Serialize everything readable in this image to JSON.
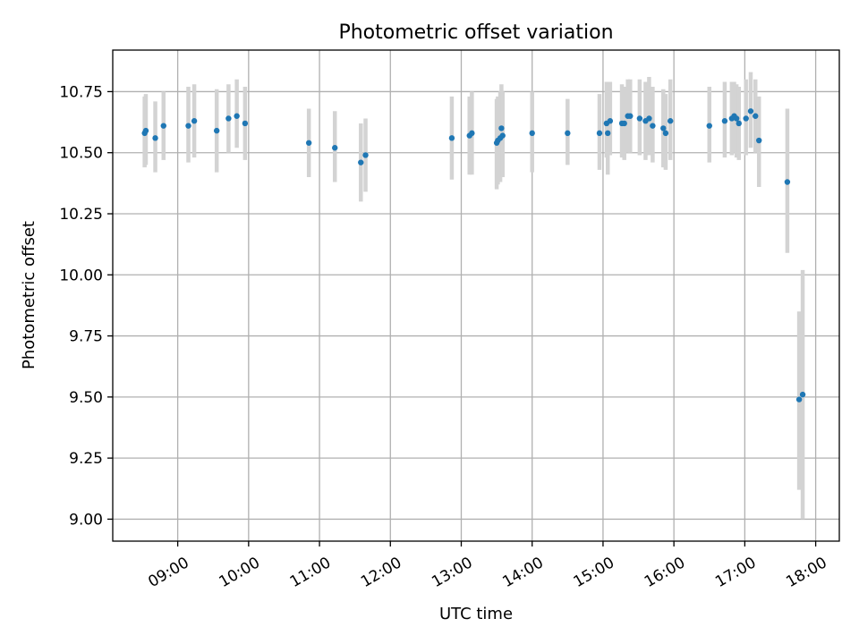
{
  "chart_data": {
    "type": "scatter",
    "title": "Photometric offset variation",
    "xlabel": "UTC time",
    "ylabel": "Photometric offset",
    "xlim": [
      "08:05",
      "18:20"
    ],
    "ylim": [
      8.91,
      10.92
    ],
    "grid": true,
    "x_ticks": [
      "09:00",
      "10:00",
      "11:00",
      "12:00",
      "13:00",
      "14:00",
      "15:00",
      "16:00",
      "17:00",
      "18:00"
    ],
    "y_ticks": [
      "9.00",
      "9.25",
      "9.50",
      "9.75",
      "10.00",
      "10.25",
      "10.50",
      "10.75"
    ],
    "point_color": "#1f77b4",
    "errorbar_color": "#d3d3d3",
    "series": [
      {
        "x": [
          "08:32",
          "08:33",
          "08:41",
          "08:48",
          "09:09",
          "09:14",
          "09:33",
          "09:43",
          "09:50",
          "09:57",
          "10:51",
          "11:13",
          "11:35",
          "11:39",
          "12:52",
          "13:07",
          "13:09",
          "13:30",
          "13:31",
          "13:33",
          "13:34",
          "13:35",
          "14:00",
          "14:30",
          "14:57",
          "15:03",
          "15:04",
          "15:06",
          "15:16",
          "15:18",
          "15:21",
          "15:23",
          "15:31",
          "15:36",
          "15:39",
          "15:42",
          "15:51",
          "15:53",
          "15:57",
          "16:30",
          "16:43",
          "16:49",
          "16:51",
          "16:53",
          "16:55",
          "17:01",
          "17:05",
          "17:09",
          "17:12",
          "17:36",
          "17:46",
          "17:49"
        ],
        "y": [
          10.58,
          10.59,
          10.56,
          10.61,
          10.61,
          10.63,
          10.59,
          10.64,
          10.65,
          10.62,
          10.54,
          10.52,
          10.46,
          10.49,
          10.56,
          10.57,
          10.58,
          10.54,
          10.55,
          10.56,
          10.6,
          10.57,
          10.58,
          10.58,
          10.58,
          10.62,
          10.58,
          10.63,
          10.62,
          10.62,
          10.65,
          10.65,
          10.64,
          10.63,
          10.64,
          10.61,
          10.6,
          10.58,
          10.63,
          10.61,
          10.63,
          10.64,
          10.65,
          10.64,
          10.62,
          10.64,
          10.67,
          10.65,
          10.55,
          10.38,
          9.49,
          9.51
        ],
        "yerr_low": [
          10.44,
          10.45,
          10.42,
          10.47,
          10.46,
          10.48,
          10.42,
          10.5,
          10.52,
          10.47,
          10.4,
          10.38,
          10.3,
          10.34,
          10.39,
          10.41,
          10.41,
          10.35,
          10.37,
          10.38,
          10.42,
          10.4,
          10.42,
          10.45,
          10.43,
          10.48,
          10.41,
          10.49,
          10.48,
          10.47,
          10.5,
          10.5,
          10.49,
          10.47,
          10.49,
          10.46,
          10.44,
          10.43,
          10.47,
          10.46,
          10.48,
          10.49,
          10.5,
          10.48,
          10.47,
          10.49,
          10.52,
          10.5,
          10.36,
          10.09,
          9.12,
          9.0
        ],
        "yerr_high": [
          10.73,
          10.74,
          10.71,
          10.75,
          10.77,
          10.78,
          10.76,
          10.78,
          10.8,
          10.77,
          10.68,
          10.67,
          10.62,
          10.64,
          10.73,
          10.73,
          10.75,
          10.72,
          10.73,
          10.75,
          10.78,
          10.75,
          10.75,
          10.72,
          10.74,
          10.79,
          10.78,
          10.79,
          10.78,
          10.77,
          10.8,
          10.8,
          10.8,
          10.79,
          10.81,
          10.77,
          10.76,
          10.74,
          10.8,
          10.77,
          10.79,
          10.79,
          10.79,
          10.78,
          10.77,
          10.8,
          10.83,
          10.8,
          10.73,
          10.68,
          9.85,
          10.02
        ]
      }
    ]
  }
}
